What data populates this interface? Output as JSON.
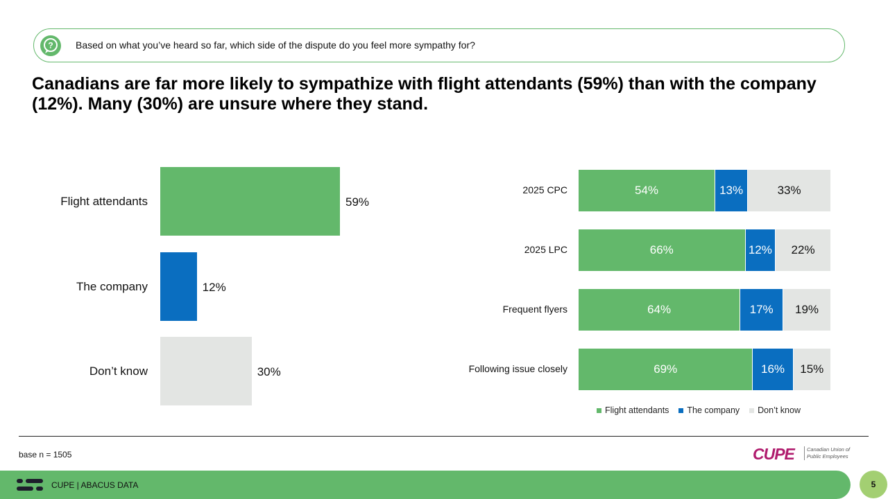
{
  "question": {
    "icon": "question-icon",
    "text": "Based on what you’ve heard so far, which side of the dispute do you feel more sympathy for?"
  },
  "headline": "Canadians are far more likely to sympathize with flight attendants (59%) than with the company (12%). Many (30%) are unsure where they stand.",
  "colors": {
    "flight_attendants": "#63b86b",
    "company": "#0a6ec0",
    "dont_know": "#e3e5e3"
  },
  "chart_data": [
    {
      "type": "bar",
      "orientation": "horizontal",
      "categories": [
        "Flight attendants",
        "The company",
        "Don’t know"
      ],
      "values": [
        59,
        12,
        30
      ],
      "value_labels": [
        "59%",
        "12%",
        "30%"
      ],
      "colors": [
        "#63b86b",
        "#0a6ec0",
        "#e3e5e3"
      ],
      "xlim": [
        0,
        100
      ]
    },
    {
      "type": "bar",
      "orientation": "horizontal",
      "stacked": true,
      "categories": [
        "2025 CPC",
        "2025 LPC",
        "Frequent flyers",
        "Following issue closely"
      ],
      "series": [
        {
          "name": "Flight attendants",
          "values": [
            54,
            66,
            64,
            69
          ],
          "labels": [
            "54%",
            "66%",
            "64%",
            "69%"
          ],
          "color": "#63b86b"
        },
        {
          "name": "The company",
          "values": [
            13,
            12,
            17,
            16
          ],
          "labels": [
            "13%",
            "12%",
            "17%",
            "16%"
          ],
          "color": "#0a6ec0"
        },
        {
          "name": "Don’t know",
          "values": [
            33,
            22,
            19,
            15
          ],
          "labels": [
            "33%",
            "22%",
            "19%",
            "15%"
          ],
          "color": "#e3e5e3"
        }
      ],
      "legend": [
        "Flight attendants",
        "The company",
        "Don’t know"
      ],
      "legend_position": "bottom"
    }
  ],
  "base_note": "base n = 1505",
  "logo": {
    "word": "CUPE",
    "subtitle": "Canadian Union of Public Employees"
  },
  "footer": {
    "text": "CUPE | ABACUS DATA",
    "page": "5"
  }
}
